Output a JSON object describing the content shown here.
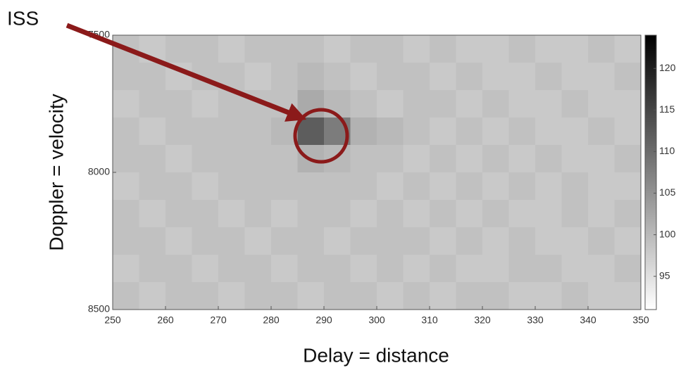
{
  "chart_data": {
    "type": "heatmap",
    "xlabel": "Delay = distance",
    "ylabel": "Doppler = velocity",
    "annotation": "ISS",
    "xbins": [
      250,
      255,
      260,
      265,
      270,
      275,
      280,
      285,
      290,
      295,
      300,
      305,
      310,
      315,
      320,
      325,
      330,
      335,
      340,
      345,
      350
    ],
    "ybins": [
      7500,
      7600,
      7700,
      7800,
      7900,
      8000,
      8100,
      8200,
      8300,
      8400,
      8500
    ],
    "values": [
      [
        99,
        98,
        99,
        99,
        98,
        99,
        99,
        99,
        98,
        99,
        99,
        98,
        99,
        98,
        98,
        99,
        98,
        98,
        99,
        98
      ],
      [
        99,
        99,
        98,
        99,
        99,
        98,
        99,
        100,
        99,
        98,
        99,
        99,
        98,
        99,
        98,
        98,
        99,
        98,
        98,
        99
      ],
      [
        98,
        99,
        99,
        98,
        99,
        99,
        99,
        102,
        100,
        99,
        98,
        99,
        99,
        98,
        99,
        98,
        98,
        99,
        98,
        98
      ],
      [
        99,
        98,
        99,
        99,
        99,
        99,
        100,
        112,
        108,
        101,
        100,
        99,
        98,
        99,
        98,
        99,
        98,
        98,
        99,
        98
      ],
      [
        99,
        99,
        98,
        99,
        99,
        99,
        99,
        101,
        100,
        99,
        99,
        98,
        99,
        98,
        99,
        98,
        99,
        98,
        98,
        99
      ],
      [
        98,
        99,
        99,
        98,
        99,
        99,
        99,
        99,
        99,
        99,
        98,
        99,
        98,
        99,
        98,
        99,
        98,
        99,
        98,
        98
      ],
      [
        99,
        98,
        99,
        99,
        98,
        99,
        98,
        99,
        99,
        98,
        99,
        98,
        99,
        98,
        99,
        98,
        98,
        99,
        98,
        99
      ],
      [
        99,
        99,
        98,
        99,
        99,
        98,
        99,
        99,
        98,
        99,
        99,
        99,
        98,
        99,
        98,
        99,
        98,
        98,
        99,
        98
      ],
      [
        98,
        99,
        99,
        98,
        99,
        99,
        98,
        99,
        99,
        98,
        99,
        98,
        99,
        98,
        98,
        99,
        99,
        98,
        98,
        99
      ],
      [
        99,
        98,
        99,
        99,
        98,
        99,
        99,
        98,
        99,
        99,
        98,
        99,
        98,
        99,
        99,
        98,
        98,
        99,
        98,
        98
      ]
    ],
    "xlim": [
      250,
      350
    ],
    "xticks": [
      250,
      260,
      270,
      280,
      290,
      300,
      310,
      320,
      330,
      340,
      350
    ],
    "ylim": [
      7500,
      8500
    ],
    "yticks": [
      7500,
      8000,
      8500
    ],
    "clim": [
      91,
      124
    ],
    "cticks": [
      95,
      100,
      105,
      110,
      115,
      120
    ],
    "colormap": "gray_r",
    "annotation_color": "#8b1a1a"
  }
}
